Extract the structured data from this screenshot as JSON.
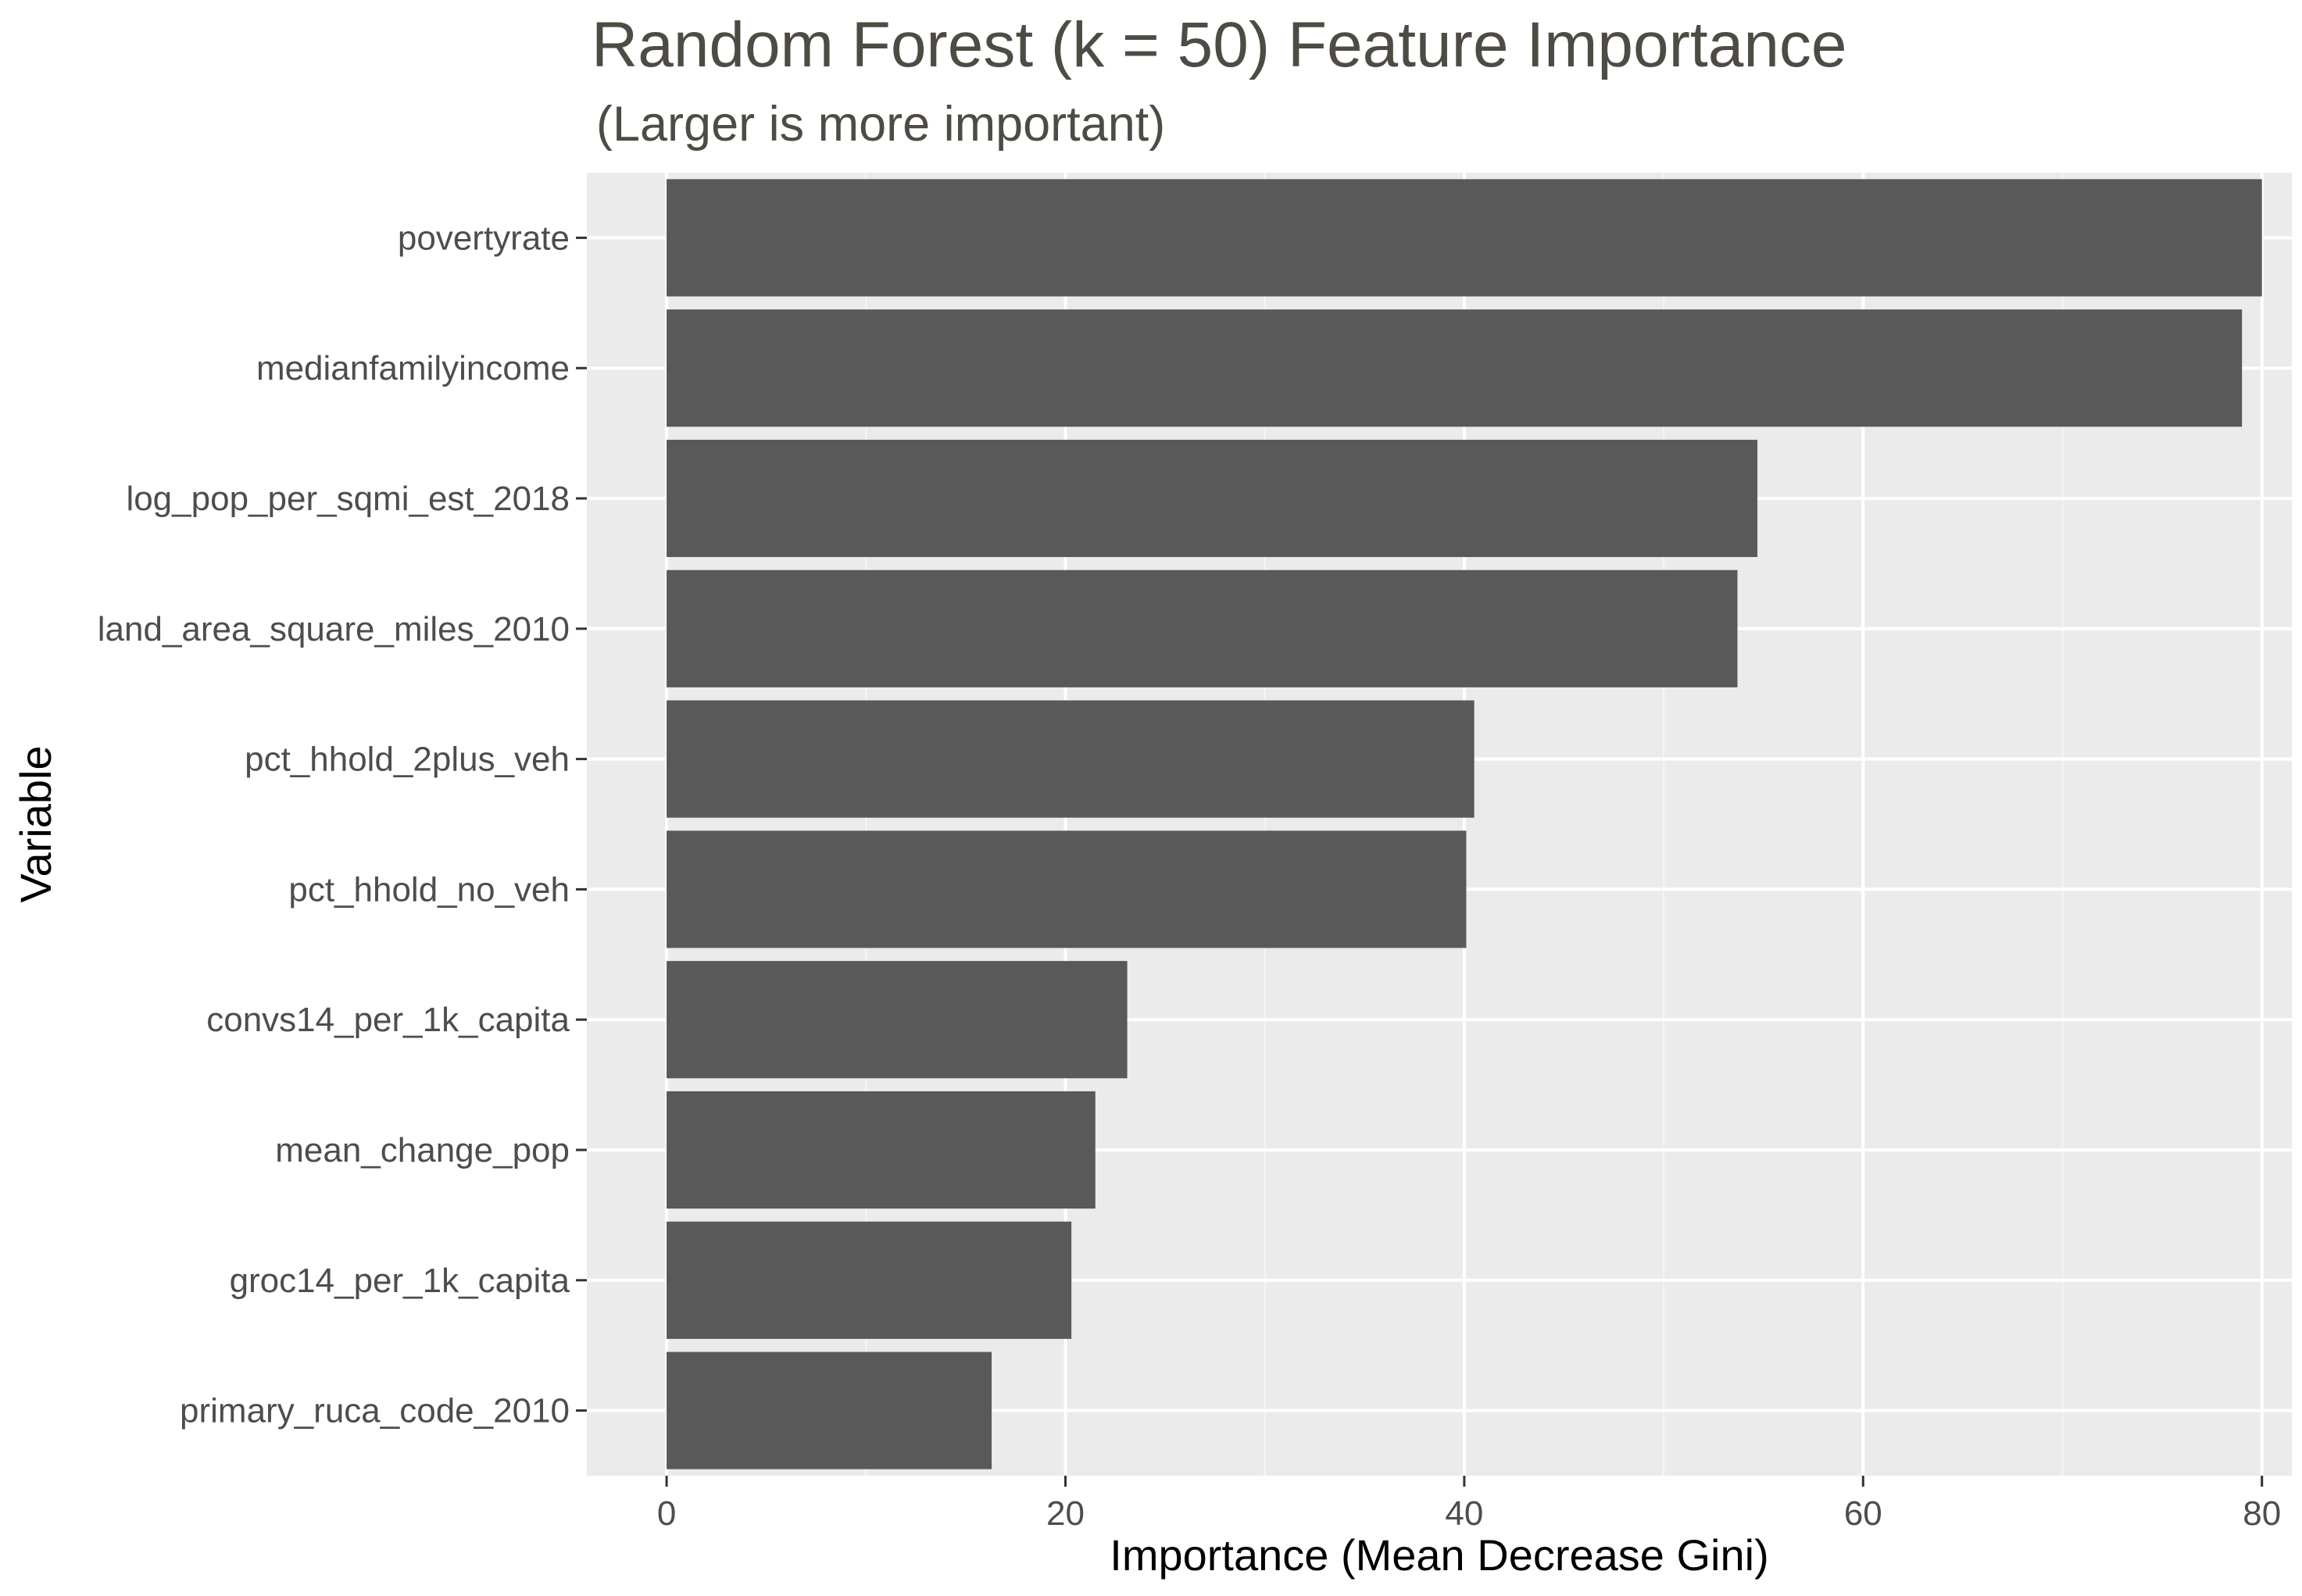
{
  "chart_data": {
    "type": "bar",
    "orientation": "horizontal",
    "title": "Random Forest (k = 50) Feature Importance",
    "subtitle": "(Larger is more important)",
    "xlabel": "Importance (Mean Decrease Gini)",
    "ylabel": "Variable",
    "categories": [
      "povertyrate",
      "medianfamilyincome",
      "log_pop_per_sqmi_est_2018",
      "land_area_square_miles_2010",
      "pct_hhold_2plus_veh",
      "pct_hhold_no_veh",
      "convs14_per_1k_capita",
      "mean_change_pop",
      "groc14_per_1k_capita",
      "primary_ruca_code_2010"
    ],
    "values": [
      80.0,
      79.0,
      54.7,
      53.7,
      40.5,
      40.1,
      23.1,
      21.5,
      20.3,
      16.3
    ],
    "xlim": [
      -4,
      81.5
    ],
    "xticks": [
      0,
      20,
      40,
      60,
      80
    ],
    "xtick_labels": [
      "0",
      "20",
      "40",
      "60",
      "80"
    ],
    "grid": true,
    "legend": "none",
    "colors": {
      "bar": "#595959",
      "panel_background": "#ebebeb",
      "grid_major": "#ffffff",
      "grid_minor": "#f5f5f5",
      "tick_text": "#4d4d4d",
      "title_text": "#4d4b43"
    }
  }
}
